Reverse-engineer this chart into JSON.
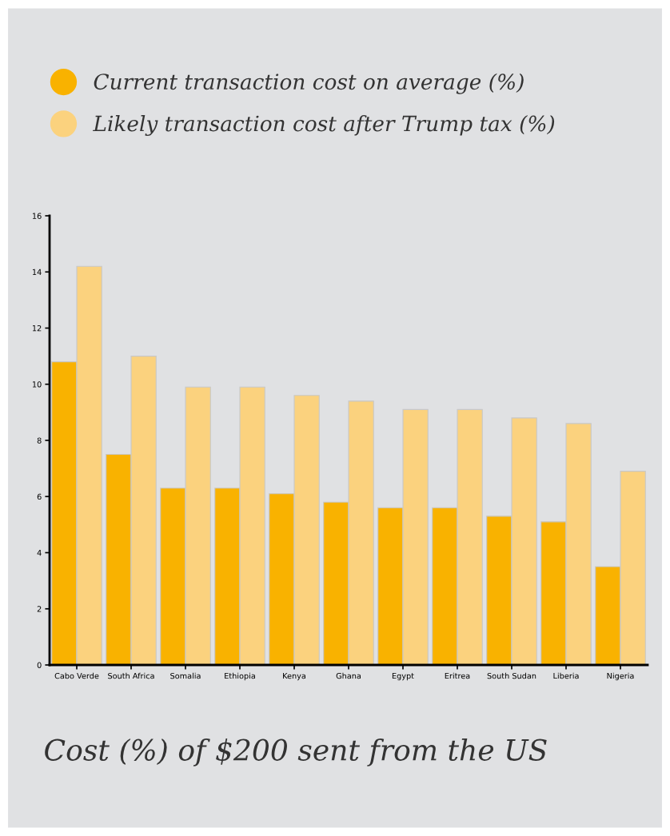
{
  "chart_data": {
    "type": "bar",
    "title": "Cost (%) of $200 sent from the US",
    "categories": [
      "Cabo Verde",
      "South Africa",
      "Somalia",
      "Ethiopia",
      "Kenya",
      "Ghana",
      "Egypt",
      "Eritrea",
      "South Sudan",
      "Liberia",
      "Nigeria"
    ],
    "series": [
      {
        "name": "Current transaction cost on average (%)",
        "color": "#f9b200",
        "values": [
          10.8,
          7.5,
          6.3,
          6.3,
          6.1,
          5.8,
          5.6,
          5.6,
          5.3,
          5.1,
          3.5
        ]
      },
      {
        "name": "Likely transaction cost after Trump tax (%)",
        "color": "#fbd27e",
        "values": [
          14.2,
          11.0,
          9.9,
          9.9,
          9.6,
          9.4,
          9.1,
          9.1,
          8.8,
          8.6,
          6.9
        ]
      }
    ],
    "ylim": [
      0,
      16
    ],
    "yticks": [
      0,
      2,
      4,
      6,
      8,
      10,
      12,
      14,
      16
    ],
    "grid": false,
    "legend": "top"
  }
}
